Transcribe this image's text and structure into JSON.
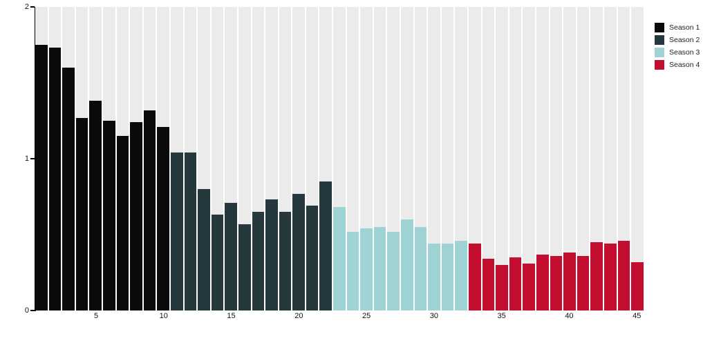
{
  "chart_data": {
    "type": "bar",
    "title": "",
    "xlabel": "",
    "ylabel": "",
    "ylim": [
      0,
      2
    ],
    "y_ticks": [
      "0",
      "1",
      "2"
    ],
    "x_ticks": [
      "5",
      "10",
      "15",
      "20",
      "25",
      "30",
      "35",
      "40",
      "45"
    ],
    "x_tick_positions": [
      5,
      10,
      15,
      20,
      25,
      30,
      35,
      40,
      45
    ],
    "n_bars": 45,
    "x": [
      1,
      2,
      3,
      4,
      5,
      6,
      7,
      8,
      9,
      10,
      11,
      12,
      13,
      14,
      15,
      16,
      17,
      18,
      19,
      20,
      21,
      22,
      23,
      24,
      25,
      26,
      27,
      28,
      29,
      30,
      31,
      32,
      33,
      34,
      35,
      36,
      37,
      38,
      39,
      40,
      41,
      42,
      43,
      44,
      45
    ],
    "values": [
      1.75,
      1.73,
      1.6,
      1.27,
      1.38,
      1.25,
      1.15,
      1.24,
      1.32,
      1.21,
      1.04,
      1.04,
      0.8,
      0.63,
      0.71,
      0.57,
      0.65,
      0.73,
      0.65,
      0.77,
      0.69,
      0.85,
      0.68,
      0.52,
      0.54,
      0.55,
      0.52,
      0.6,
      0.55,
      0.44,
      0.44,
      0.46,
      0.44,
      0.34,
      0.3,
      0.35,
      0.31,
      0.37,
      0.36,
      0.38,
      0.36,
      0.45,
      0.44,
      0.46,
      0.32
    ],
    "bar_season": [
      1,
      1,
      1,
      1,
      1,
      1,
      1,
      1,
      1,
      1,
      2,
      2,
      2,
      2,
      2,
      2,
      2,
      2,
      2,
      2,
      2,
      2,
      3,
      3,
      3,
      3,
      3,
      3,
      3,
      3,
      3,
      3,
      4,
      4,
      4,
      4,
      4,
      4,
      4,
      4,
      4,
      4,
      4,
      4,
      4
    ],
    "legend": [
      {
        "label": "Season 1",
        "color": "#0a0a0c"
      },
      {
        "label": "Season 2",
        "color": "#25383d"
      },
      {
        "label": "Season 3",
        "color": "#a0d3d4"
      },
      {
        "label": "Season 4",
        "color": "#c30e2f"
      }
    ],
    "legend_position": "top-right",
    "grid": false,
    "plot_bg_color": "#ebebeb",
    "axis_color": "#000000"
  }
}
